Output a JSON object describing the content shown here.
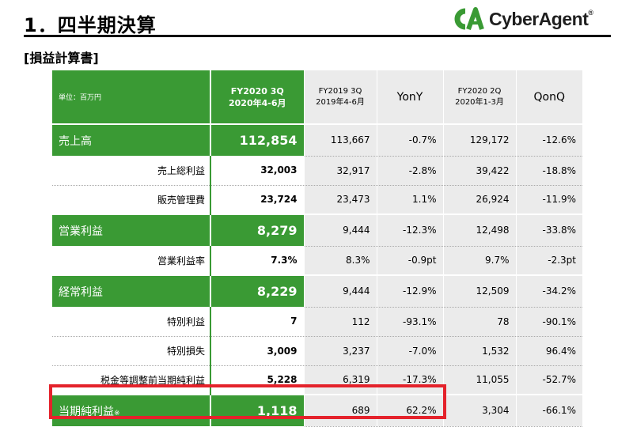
{
  "header": {
    "title": "1．四半期決算",
    "section": "[損益計算書]",
    "logo_text": "CyberAgent",
    "logo_registered": "®",
    "colors": {
      "green": "#3a9a34",
      "highlight_red": "#e4222b",
      "cell_grey": "#ebebeb"
    }
  },
  "table": {
    "unit_label": "単位：百万円",
    "columns": [
      {
        "line1": "FY2020 3Q",
        "line2": "2020年4-6月"
      },
      {
        "line1": "FY2019 3Q",
        "line2": "2019年4-6月"
      },
      {
        "line1": "YonY",
        "line2": ""
      },
      {
        "line1": "FY2020 2Q",
        "line2": "2020年1-3月"
      },
      {
        "line1": "QonQ",
        "line2": ""
      }
    ],
    "rows": [
      {
        "label": "売上高",
        "values": [
          "112,854",
          "113,667",
          "-0.7%",
          "129,172",
          "-12.6%"
        ]
      },
      {
        "label": "売上総利益",
        "values": [
          "32,003",
          "32,917",
          "-2.8%",
          "39,422",
          "-18.8%"
        ]
      },
      {
        "label": "販売管理費",
        "values": [
          "23,724",
          "23,473",
          "1.1%",
          "26,924",
          "-11.9%"
        ]
      },
      {
        "label": "営業利益",
        "values": [
          "8,279",
          "9,444",
          "-12.3%",
          "12,498",
          "-33.8%"
        ]
      },
      {
        "label": "営業利益率",
        "values": [
          "7.3%",
          "8.3%",
          "-0.9pt",
          "9.7%",
          "-2.3pt"
        ]
      },
      {
        "label": "経常利益",
        "values": [
          "8,229",
          "9,444",
          "-12.9%",
          "12,509",
          "-34.2%"
        ]
      },
      {
        "label": "特別利益",
        "values": [
          "7",
          "112",
          "-93.1%",
          "78",
          "-90.1%"
        ]
      },
      {
        "label": "特別損失",
        "values": [
          "3,009",
          "3,237",
          "-7.0%",
          "1,532",
          "96.4%"
        ]
      },
      {
        "label": "税金等調整前当期純利益",
        "values": [
          "5,228",
          "6,319",
          "-17.3%",
          "11,055",
          "-52.7%"
        ]
      },
      {
        "label": "当期純利益",
        "label_mark": "※",
        "values": [
          "1,118",
          "689",
          "62.2%",
          "3,304",
          "-66.1%"
        ]
      }
    ]
  }
}
